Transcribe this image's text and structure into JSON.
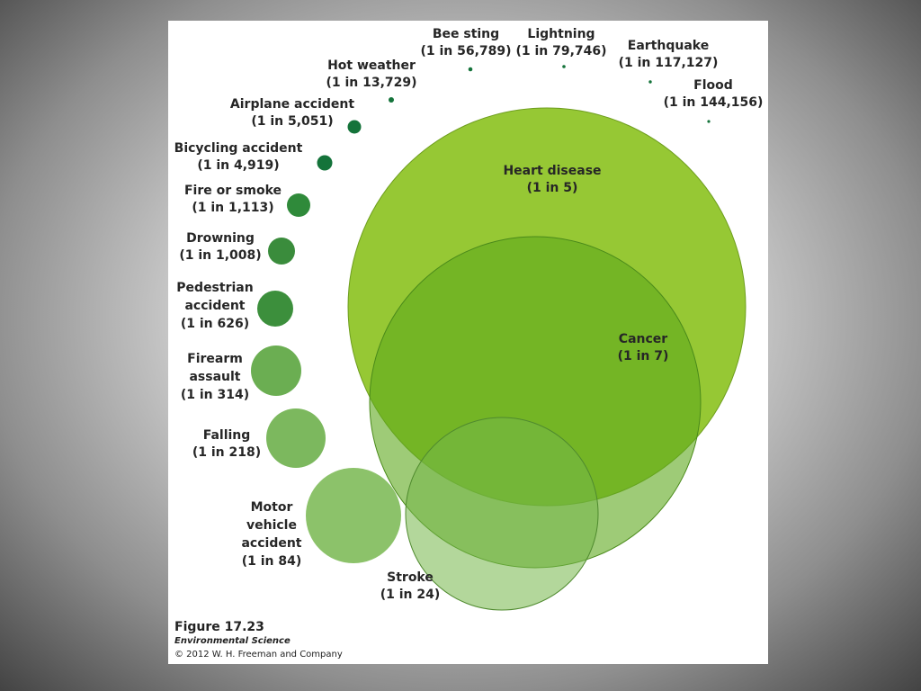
{
  "figure": {
    "number": "Figure 17.23",
    "book": "Environmental Science",
    "copyright": "© 2012 W. H. Freeman and Company"
  },
  "circles": {
    "heart_disease": {
      "name": "Heart disease",
      "odds": "(1 in 5)",
      "color": "#8ec425",
      "opacity": 0.93
    },
    "cancer": {
      "name": "Cancer",
      "odds": "(1 in 7)",
      "color": "#5ea81c",
      "opacity": 0.6
    },
    "stroke": {
      "name": "Stroke",
      "odds": "(1 in 24)",
      "color": "#75b648",
      "opacity": 0.55
    },
    "motor_vehicle": {
      "name_line1": "Motor",
      "name_line2": "vehicle",
      "name_line3": "accident",
      "odds": "(1 in 84)",
      "color": "#8cc26a"
    },
    "falling": {
      "name": "Falling",
      "odds": "(1 in 218)",
      "color": "#7cb85e"
    },
    "firearm": {
      "name_line1": "Firearm",
      "name_line2": "assault",
      "odds": "(1 in 314)",
      "color": "#6bae52"
    },
    "pedestrian": {
      "name_line1": "Pedestrian",
      "name_line2": "accident",
      "odds": "(1 in 626)",
      "color": "#3c8f3c"
    },
    "drowning": {
      "name": "Drowning",
      "odds": "(1 in 1,008)",
      "color": "#3a8c3c"
    },
    "fire": {
      "name": "Fire or smoke",
      "odds": "(1 in 1,113)",
      "color": "#2f8a3a"
    },
    "bicycling": {
      "name": "Bicycling accident",
      "odds": "(1 in 4,919)",
      "color": "#14733a"
    },
    "airplane": {
      "name": "Airplane accident",
      "odds": "(1 in 5,051)",
      "color": "#14733a"
    },
    "hot_weather": {
      "name": "Hot weather",
      "odds": "(1 in 13,729)",
      "color": "#14733a"
    },
    "bee_sting": {
      "name": "Bee sting",
      "odds": "(1 in 56,789)",
      "color": "#14733a"
    },
    "lightning": {
      "name": "Lightning",
      "odds": "(1 in 79,746)",
      "color": "#14733a"
    },
    "earthquake": {
      "name": "Earthquake",
      "odds": "(1 in 117,127)",
      "color": "#14733a"
    },
    "flood": {
      "name": "Flood",
      "odds": "(1 in 144,156)",
      "color": "#14733a"
    }
  }
}
